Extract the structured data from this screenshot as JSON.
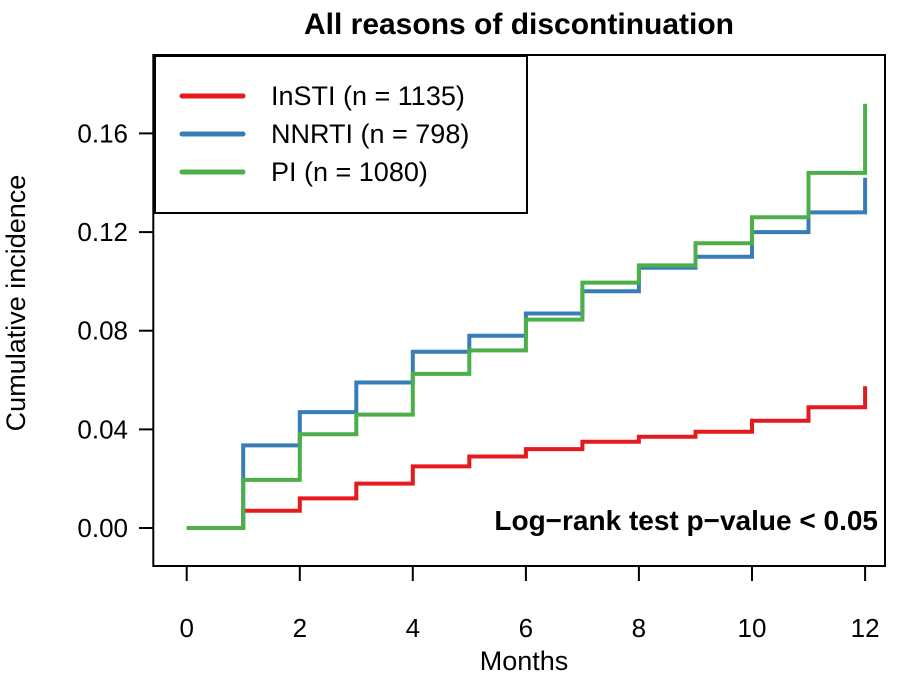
{
  "chart_data": {
    "type": "line",
    "subtype": "step-function-cumulative-incidence",
    "title": "All reasons of discontinuation",
    "xlabel": "Months",
    "ylabel": "Cumulative incidence",
    "annotation": "Log−rank test p−value < 0.05",
    "xlim": [
      0,
      12
    ],
    "ylim": [
      0,
      0.175
    ],
    "grid": false,
    "legend_position": "top-left",
    "x_ticks": {
      "values": [
        0,
        2,
        4,
        6,
        8,
        10,
        12
      ],
      "labels": [
        "0",
        "2",
        "4",
        "6",
        "8",
        "10",
        "12"
      ]
    },
    "y_ticks": {
      "values": [
        0,
        0.04,
        0.08,
        0.12,
        0.16
      ],
      "labels": [
        "0.00",
        "0.04",
        "0.08",
        "0.12",
        "0.16"
      ]
    },
    "x": [
      0,
      1,
      2,
      3,
      4,
      5,
      6,
      7,
      8,
      9,
      10,
      11,
      12
    ],
    "series": [
      {
        "name": "InSTI (n = 1135)",
        "color": "#E41A1C",
        "values": [
          0,
          0.007,
          0.012,
          0.018,
          0.025,
          0.029,
          0.032,
          0.035,
          0.037,
          0.039,
          0.0435,
          0.049,
          0.0575
        ]
      },
      {
        "name": "NNRTI (n = 798)",
        "color": "#377EB8",
        "values": [
          0,
          0.0335,
          0.047,
          0.059,
          0.0715,
          0.078,
          0.087,
          0.096,
          0.1055,
          0.11,
          0.12,
          0.128,
          0.142
        ]
      },
      {
        "name": "PI (n = 1080)",
        "color": "#4DAF4A",
        "values": [
          0,
          0.0195,
          0.038,
          0.046,
          0.0625,
          0.072,
          0.0845,
          0.0995,
          0.1065,
          0.1155,
          0.126,
          0.144,
          0.172
        ]
      }
    ]
  }
}
